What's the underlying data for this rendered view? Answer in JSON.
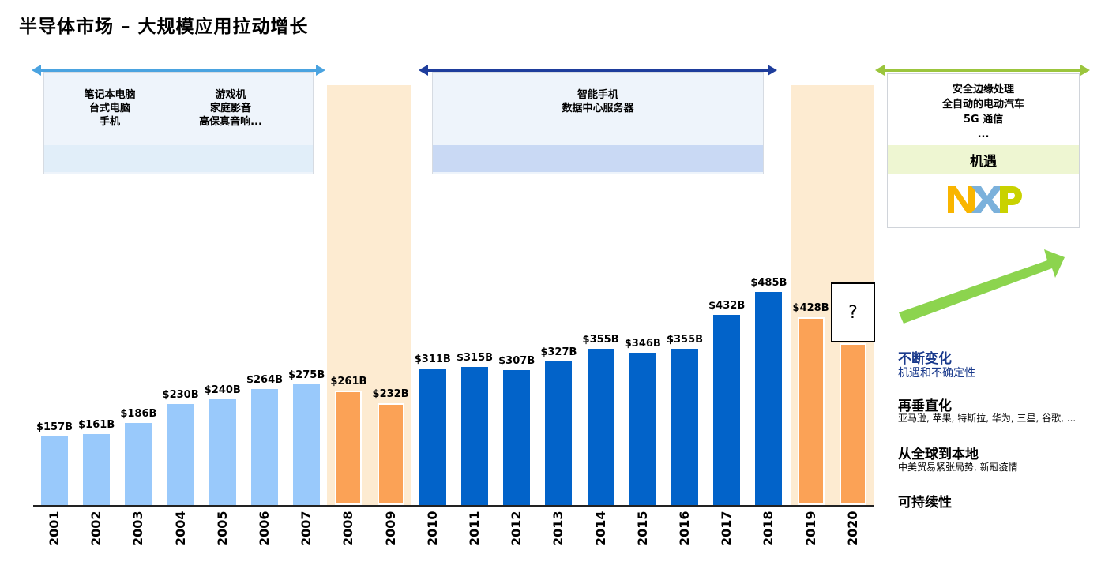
{
  "title": "半导体市场 – 大规模应用拉动增长",
  "eras": [
    {
      "lines_left": [
        "笔记本电脑",
        "台式电脑",
        "手机"
      ],
      "lines_right": [
        "游戏机",
        "家庭影音",
        "高保真音响..."
      ],
      "color": "#4aa3e0"
    },
    {
      "lines": [
        "智能手机",
        "数据中心服务器"
      ],
      "color": "#1e3d9c"
    },
    {
      "lines": [
        "安全边缘处理",
        "全自动的电动汽车",
        "5G 通信",
        "..."
      ],
      "band_label": "机遇",
      "logo": "NXP",
      "color": "#9bc53d"
    }
  ],
  "chart_data": {
    "type": "bar",
    "categories": [
      "2001",
      "2002",
      "2003",
      "2004",
      "2005",
      "2006",
      "2007",
      "2008",
      "2009",
      "2010",
      "2011",
      "2012",
      "2013",
      "2014",
      "2015",
      "2016",
      "2017",
      "2018",
      "2019",
      "2020"
    ],
    "values": [
      157,
      161,
      186,
      230,
      240,
      264,
      275,
      261,
      232,
      311,
      315,
      307,
      327,
      355,
      346,
      355,
      432,
      485,
      428,
      null
    ],
    "labels": [
      "$157B",
      "$161B",
      "$186B",
      "$230B",
      "$240B",
      "$264B",
      "$275B",
      "$261B",
      "$232B",
      "$311B",
      "$315B",
      "$307B",
      "$327B",
      "$355B",
      "$346B",
      "$355B",
      "$432B",
      "$485B",
      "$428B",
      "?"
    ],
    "colors": {
      "early": "#99c9fb",
      "recession": "#fba256",
      "growth": "#0263c9"
    },
    "highlighted_years": [
      "2008",
      "2009",
      "2019",
      "2020"
    ],
    "unknown_label": "?"
  },
  "side_notes": [
    {
      "title": "不断变化",
      "subtitle": "机遇和不确定性",
      "title_color": "#1a3a8c",
      "subtitle_color": "#1a3a8c"
    },
    {
      "title": "再垂直化",
      "subtitle": "亚马逊, 苹果, 特斯拉, 华为, 三星, 谷歌, ..."
    },
    {
      "title": "从全球到本地",
      "subtitle": "中美贸易紧张局势, 新冠疫情"
    },
    {
      "title": "可持续性",
      "subtitle": ""
    }
  ]
}
